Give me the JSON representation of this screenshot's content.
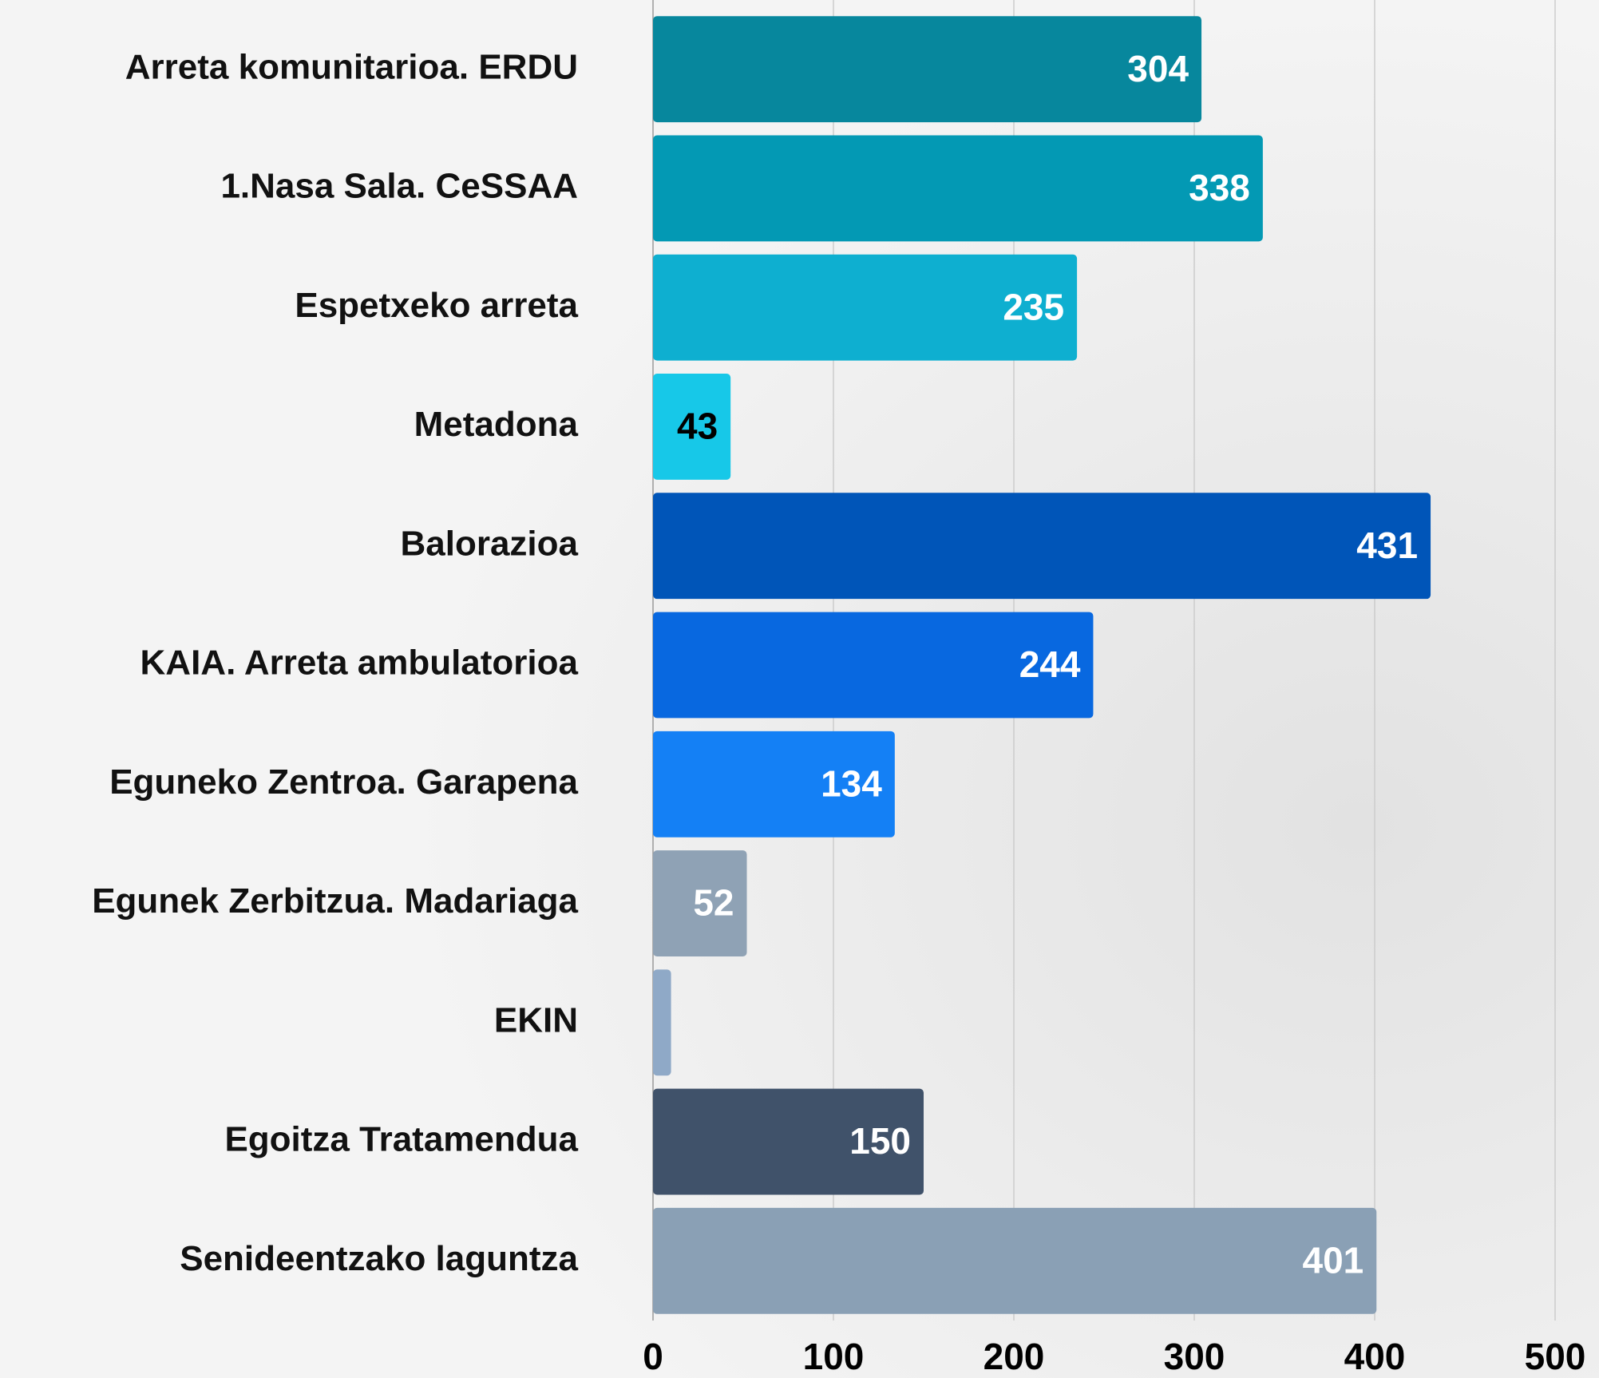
{
  "chart_data": {
    "type": "bar",
    "orientation": "horizontal",
    "categories": [
      "Arreta komunitarioa. ERDU",
      "1.Nasa Sala. CeSSAA",
      "Espetxeko arreta",
      "Metadona",
      "Balorazioa",
      "KAIA. Arreta ambulatorioa",
      "Eguneko Zentroa. Garapena",
      "Egunek Zerbitzua. Madariaga",
      "EKIN",
      "Egoitza Tratamendua",
      "Senideentzako laguntza"
    ],
    "values": [
      304,
      338,
      235,
      43,
      431,
      244,
      134,
      52,
      10,
      150,
      401
    ],
    "colors": [
      "#07879d",
      "#0399b4",
      "#0eafd0",
      "#17c8e8",
      "#0055b8",
      "#0868e0",
      "#1480f5",
      "#8fa2b5",
      "#8fa9c7",
      "#40526a",
      "#8aa0b5"
    ],
    "xlim": [
      0,
      500
    ],
    "xticks": [
      0,
      100,
      200,
      300,
      400,
      500
    ],
    "grid": true
  }
}
